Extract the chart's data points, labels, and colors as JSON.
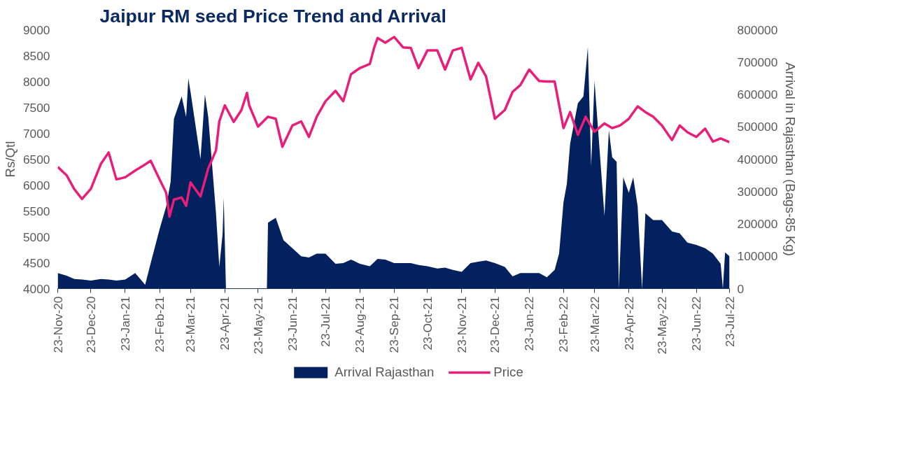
{
  "chart_data": {
    "type": "line",
    "title": "Jaipur RM seed Price Trend and Arrival",
    "ylabel": "Rs/Qtl",
    "y2label": "Arrival in Rajasthan (Bags-85 Kg)",
    "xlim": [
      "2020-11-23",
      "2022-07-23"
    ],
    "xticks": [
      {
        "value": "2020-11-23",
        "label": "23-Nov-20"
      },
      {
        "value": "2020-12-23",
        "label": "23-Dec-20"
      },
      {
        "value": "2021-01-23",
        "label": "23-Jan-21"
      },
      {
        "value": "2021-02-23",
        "label": "23-Feb-21"
      },
      {
        "value": "2021-03-23",
        "label": "23-Mar-21"
      },
      {
        "value": "2021-04-23",
        "label": "23-Apr-21"
      },
      {
        "value": "2021-05-23",
        "label": "23-May-21"
      },
      {
        "value": "2021-06-23",
        "label": "23-Jun-21"
      },
      {
        "value": "2021-07-23",
        "label": "23-Jul-21"
      },
      {
        "value": "2021-08-23",
        "label": "23-Aug-21"
      },
      {
        "value": "2021-09-23",
        "label": "23-Sep-21"
      },
      {
        "value": "2021-10-23",
        "label": "23-Oct-21"
      },
      {
        "value": "2021-11-23",
        "label": "23-Nov-21"
      },
      {
        "value": "2021-12-23",
        "label": "23-Dec-21"
      },
      {
        "value": "2022-01-23",
        "label": "23-Jan-22"
      },
      {
        "value": "2022-02-23",
        "label": "23-Feb-22"
      },
      {
        "value": "2022-03-23",
        "label": "23-Mar-22"
      },
      {
        "value": "2022-04-23",
        "label": "23-Apr-22"
      },
      {
        "value": "2022-05-23",
        "label": "23-May-22"
      },
      {
        "value": "2022-06-23",
        "label": "23-Jun-22"
      },
      {
        "value": "2022-07-23",
        "label": "23-Jul-22"
      }
    ],
    "ylim": [
      4000,
      9000
    ],
    "yticks": [
      4000,
      4500,
      5000,
      5500,
      6000,
      6500,
      7000,
      7500,
      8000,
      8500,
      9000
    ],
    "y2lim": [
      0,
      800000
    ],
    "y2ticks": [
      0,
      100000,
      200000,
      300000,
      400000,
      500000,
      600000,
      700000,
      800000
    ],
    "grid": false,
    "legend": "bottom",
    "marker": "none",
    "series": [
      {
        "name": "Arrival Rajasthan",
        "type": "area",
        "axis": "y2",
        "color": "#03215f",
        "x": [
          "2020-11-23",
          "2020-12-01",
          "2020-12-08",
          "2020-12-15",
          "2020-12-23",
          "2021-01-01",
          "2021-01-08",
          "2021-01-15",
          "2021-01-23",
          "2021-02-01",
          "2021-02-10",
          "2021-02-15",
          "2021-02-23",
          "2021-03-01",
          "2021-03-05",
          "2021-03-08",
          "2021-03-15",
          "2021-03-19",
          "2021-03-21",
          "2021-03-23",
          "2021-04-01",
          "2021-04-05",
          "2021-04-08",
          "2021-04-15",
          "2021-04-18",
          "2021-04-21",
          "2021-04-22",
          "2021-04-24",
          "2021-05-31",
          "2021-06-01",
          "2021-06-08",
          "2021-06-15",
          "2021-06-23",
          "2021-07-01",
          "2021-07-08",
          "2021-07-15",
          "2021-07-23",
          "2021-08-01",
          "2021-08-08",
          "2021-08-15",
          "2021-08-23",
          "2021-09-01",
          "2021-09-08",
          "2021-09-15",
          "2021-09-23",
          "2021-10-01",
          "2021-10-08",
          "2021-10-15",
          "2021-10-23",
          "2021-11-01",
          "2021-11-08",
          "2021-11-15",
          "2021-11-23",
          "2021-12-01",
          "2021-12-08",
          "2021-12-15",
          "2021-12-23",
          "2022-01-01",
          "2022-01-08",
          "2022-01-15",
          "2022-01-23",
          "2022-02-01",
          "2022-02-08",
          "2022-02-15",
          "2022-02-19",
          "2022-02-23",
          "2022-02-26",
          "2022-03-01",
          "2022-03-08",
          "2022-03-13",
          "2022-03-17",
          "2022-03-20",
          "2022-03-23",
          "2022-04-01",
          "2022-04-05",
          "2022-04-08",
          "2022-04-12",
          "2022-04-14",
          "2022-04-18",
          "2022-04-23",
          "2022-04-27",
          "2022-05-01",
          "2022-05-05",
          "2022-05-08",
          "2022-05-15",
          "2022-05-23",
          "2022-06-01",
          "2022-06-08",
          "2022-06-15",
          "2022-06-23",
          "2022-07-01",
          "2022-07-08",
          "2022-07-15",
          "2022-07-17",
          "2022-07-19",
          "2022-07-23"
        ],
        "values": [
          48000,
          40000,
          30000,
          28000,
          25000,
          30000,
          28000,
          25000,
          28000,
          48000,
          12000,
          79000,
          183000,
          254000,
          330000,
          525000,
          594000,
          531000,
          650000,
          608000,
          400000,
          600000,
          531000,
          233000,
          67000,
          171000,
          281000,
          0,
          0,
          204000,
          219000,
          150000,
          125000,
          100000,
          96000,
          108000,
          108000,
          77000,
          79000,
          90000,
          77000,
          69000,
          92000,
          90000,
          79000,
          79000,
          79000,
          73000,
          69000,
          62000,
          65000,
          58000,
          52000,
          79000,
          83000,
          87000,
          79000,
          67000,
          38000,
          48000,
          48000,
          48000,
          35000,
          58000,
          108000,
          267000,
          323000,
          448000,
          573000,
          594000,
          746000,
          379000,
          642000,
          225000,
          490000,
          406000,
          392000,
          0,
          344000,
          296000,
          344000,
          254000,
          0,
          233000,
          212000,
          212000,
          177000,
          171000,
          142000,
          135000,
          125000,
          108000,
          77000,
          0,
          112000,
          100000
        ]
      },
      {
        "name": "Price",
        "color": "#e91e78",
        "line_style": "solid",
        "x": [
          "2020-11-23",
          "2020-12-01",
          "2020-12-08",
          "2020-12-15",
          "2020-12-23",
          "2021-01-01",
          "2021-01-08",
          "2021-01-15",
          "2021-01-23",
          "2021-02-01",
          "2021-02-08",
          "2021-02-15",
          "2021-02-23",
          "2021-03-01",
          "2021-03-04",
          "2021-03-08",
          "2021-03-15",
          "2021-03-19",
          "2021-03-23",
          "2021-04-01",
          "2021-04-08",
          "2021-04-15",
          "2021-04-18",
          "2021-04-23",
          "2021-05-01",
          "2021-05-08",
          "2021-05-13",
          "2021-05-15",
          "2021-05-23",
          "2021-06-01",
          "2021-06-08",
          "2021-06-14",
          "2021-06-23",
          "2021-07-01",
          "2021-07-08",
          "2021-07-15",
          "2021-07-23",
          "2021-08-01",
          "2021-08-08",
          "2021-08-15",
          "2021-08-23",
          "2021-09-01",
          "2021-09-05",
          "2021-09-08",
          "2021-09-15",
          "2021-09-23",
          "2021-10-01",
          "2021-10-08",
          "2021-10-15",
          "2021-10-23",
          "2021-11-01",
          "2021-11-08",
          "2021-11-15",
          "2021-11-23",
          "2021-12-01",
          "2021-12-08",
          "2021-12-15",
          "2021-12-23",
          "2022-01-01",
          "2022-01-08",
          "2022-01-15",
          "2022-01-23",
          "2022-02-01",
          "2022-02-08",
          "2022-02-15",
          "2022-02-23",
          "2022-03-01",
          "2022-03-08",
          "2022-03-15",
          "2022-03-23",
          "2022-04-01",
          "2022-04-08",
          "2022-04-15",
          "2022-04-23",
          "2022-05-01",
          "2022-05-08",
          "2022-05-15",
          "2022-05-23",
          "2022-06-01",
          "2022-06-08",
          "2022-06-15",
          "2022-06-23",
          "2022-07-01",
          "2022-07-08",
          "2022-07-15",
          "2022-07-23"
        ],
        "values": [
          6350,
          6190,
          5920,
          5730,
          5930,
          6410,
          6630,
          6110,
          6150,
          6280,
          6370,
          6470,
          6110,
          5850,
          5390,
          5720,
          5760,
          5600,
          6050,
          5780,
          6320,
          6670,
          7230,
          7540,
          7220,
          7450,
          7780,
          7540,
          7130,
          7320,
          7280,
          6740,
          7150,
          7230,
          6930,
          7320,
          7620,
          7820,
          7620,
          8140,
          8260,
          8340,
          8660,
          8840,
          8750,
          8860,
          8660,
          8650,
          8260,
          8600,
          8600,
          8230,
          8600,
          8650,
          8040,
          8360,
          8100,
          7280,
          7450,
          7800,
          7930,
          8230,
          8010,
          8000,
          8000,
          7100,
          7410,
          6970,
          7320,
          7030,
          7190,
          7100,
          7150,
          7280,
          7520,
          7410,
          7320,
          7150,
          6870,
          7150,
          7020,
          6930,
          7090,
          6840,
          6900,
          6830
        ]
      }
    ]
  }
}
